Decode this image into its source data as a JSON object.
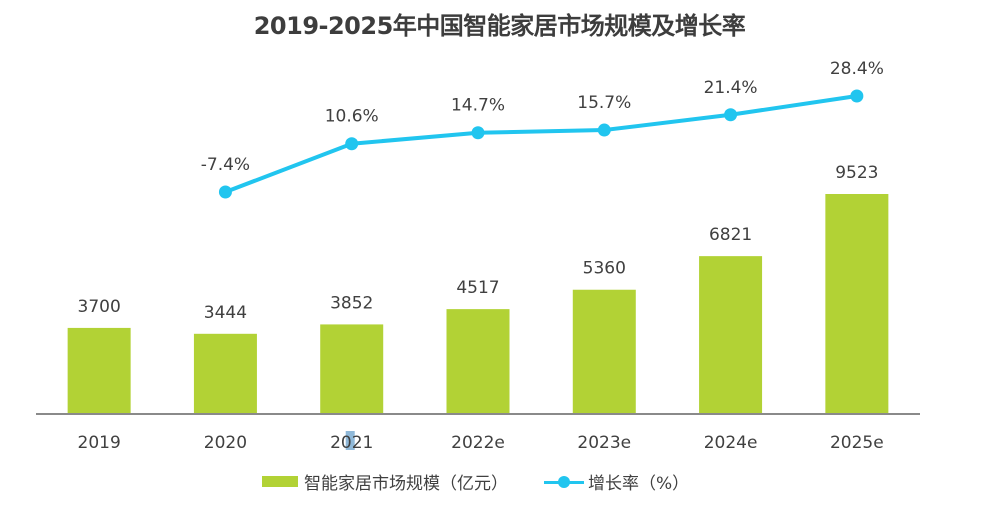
{
  "chart_data": {
    "type": "bar",
    "title": "2019-2025年中国智能家居市场规模及增长率",
    "xlabel": "",
    "ylabel": "",
    "categories": [
      "2019",
      "2020",
      "2021",
      "2022e",
      "2023e",
      "2024e",
      "2025e"
    ],
    "series": [
      {
        "name": "智能家居市场规模（亿元）",
        "type": "bar",
        "color": "#b2d235",
        "values": [
          3700,
          3444,
          3852,
          4517,
          5360,
          6821,
          9523
        ],
        "labels": [
          "3700",
          "3444",
          "3852",
          "4517",
          "5360",
          "6821",
          "9523"
        ]
      },
      {
        "name": "增长率（%）",
        "type": "line",
        "color": "#21c5ef",
        "values": [
          null,
          -7.4,
          10.6,
          14.7,
          15.7,
          21.4,
          28.4
        ],
        "labels": [
          "",
          "-7.4%",
          "10.6%",
          "14.7%",
          "15.7%",
          "21.4%",
          "28.4%"
        ]
      }
    ],
    "grid": false,
    "legend": "bottom-center",
    "legend_entries": [
      "智能家居市场规模（亿元）",
      "增长率（%）"
    ]
  }
}
